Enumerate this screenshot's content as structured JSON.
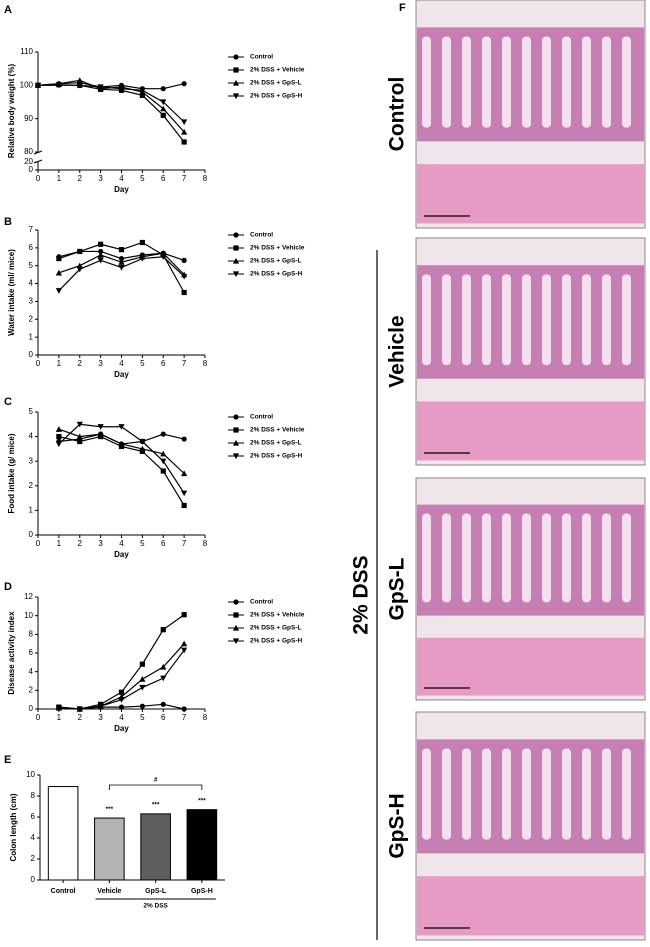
{
  "chart_data": [
    {
      "type": "line",
      "panel": "A",
      "ylabel": "Relative body weight (%)",
      "xlabel": "Day",
      "xlim": [
        0,
        8
      ],
      "xticks": [
        0,
        1,
        2,
        3,
        4,
        5,
        6,
        7,
        8
      ],
      "ylim": [
        80,
        110
      ],
      "yticks": [
        80,
        90,
        100,
        110
      ],
      "lower_ylim": [
        0,
        20
      ],
      "lower_yticks": [
        0,
        20
      ],
      "x": [
        0,
        1,
        2,
        3,
        4,
        5,
        6,
        7
      ],
      "series": [
        {
          "name": "Control",
          "color": "#000000",
          "marker": "circle",
          "values": [
            100,
            100.5,
            100.8,
            99.5,
            100,
            99,
            99,
            100.5
          ]
        },
        {
          "name": "2% DSS + Vehicle",
          "color": "#000000",
          "marker": "square",
          "values": [
            100,
            100.2,
            100,
            98.8,
            98.5,
            97,
            91,
            83
          ]
        },
        {
          "name": "2% DSS + GpS-L",
          "color": "#000000",
          "marker": "triangle",
          "values": [
            100,
            100.5,
            101.5,
            99,
            99.5,
            98,
            93,
            86
          ]
        },
        {
          "name": "2% DSS + GpS-H",
          "color": "#000000",
          "marker": "triangle-down",
          "values": [
            100,
            100,
            100,
            99.5,
            99,
            98.5,
            95,
            89
          ]
        }
      ]
    },
    {
      "type": "line",
      "panel": "B",
      "ylabel": "Water intake (ml/ mice)",
      "xlabel": "Day",
      "xlim": [
        0,
        8
      ],
      "xticks": [
        0,
        1,
        2,
        3,
        4,
        5,
        6,
        7,
        8
      ],
      "ylim": [
        0,
        7
      ],
      "yticks": [
        0,
        1,
        2,
        3,
        4,
        5,
        6,
        7
      ],
      "x": [
        1,
        2,
        3,
        4,
        5,
        6,
        7
      ],
      "series": [
        {
          "name": "Control",
          "color": "#000000",
          "marker": "circle",
          "values": [
            5.5,
            5.8,
            5.8,
            5.4,
            5.6,
            5.7,
            5.3
          ]
        },
        {
          "name": "2% DSS + Vehicle",
          "color": "#000000",
          "marker": "square",
          "values": [
            5.4,
            5.8,
            6.2,
            5.9,
            6.3,
            5.6,
            3.5
          ]
        },
        {
          "name": "2% DSS + GpS-L",
          "color": "#000000",
          "marker": "triangle",
          "values": [
            4.6,
            5.0,
            5.6,
            5.2,
            5.5,
            5.7,
            4.5
          ]
        },
        {
          "name": "2% DSS + GpS-H",
          "color": "#000000",
          "marker": "triangle-down",
          "values": [
            3.6,
            4.8,
            5.3,
            4.9,
            5.4,
            5.5,
            4.4
          ]
        }
      ]
    },
    {
      "type": "line",
      "panel": "C",
      "ylabel": "Food intake (g/ mice)",
      "xlabel": "Day",
      "xlim": [
        0,
        8
      ],
      "xticks": [
        0,
        1,
        2,
        3,
        4,
        5,
        6,
        7,
        8
      ],
      "ylim": [
        0,
        5
      ],
      "yticks": [
        0,
        1,
        2,
        3,
        4,
        5
      ],
      "x": [
        1,
        2,
        3,
        4,
        5,
        6,
        7
      ],
      "series": [
        {
          "name": "Control",
          "color": "#000000",
          "marker": "circle",
          "values": [
            3.8,
            3.9,
            4.1,
            3.7,
            3.8,
            4.1,
            3.9
          ]
        },
        {
          "name": "2% DSS + Vehicle",
          "color": "#000000",
          "marker": "square",
          "values": [
            4.0,
            3.8,
            4.0,
            3.6,
            3.4,
            2.6,
            1.2
          ]
        },
        {
          "name": "2% DSS + GpS-L",
          "color": "#000000",
          "marker": "triangle",
          "values": [
            4.3,
            4.0,
            4.1,
            3.7,
            3.5,
            3.3,
            2.5
          ]
        },
        {
          "name": "2% DSS + GpS-H",
          "color": "#000000",
          "marker": "triangle-down",
          "values": [
            3.7,
            4.5,
            4.4,
            4.4,
            3.8,
            3.0,
            1.7
          ]
        }
      ]
    },
    {
      "type": "line",
      "panel": "D",
      "ylabel": "Disease activity index",
      "xlabel": "Day",
      "xlim": [
        0,
        8
      ],
      "xticks": [
        0,
        1,
        2,
        3,
        4,
        5,
        6,
        7,
        8
      ],
      "ylim": [
        0,
        12
      ],
      "yticks": [
        0,
        2,
        4,
        6,
        8,
        10,
        12
      ],
      "x": [
        1,
        2,
        3,
        4,
        5,
        6,
        7
      ],
      "series": [
        {
          "name": "Control",
          "color": "#000000",
          "marker": "circle",
          "values": [
            0.2,
            0,
            0.2,
            0.2,
            0.3,
            0.5,
            0
          ]
        },
        {
          "name": "2% DSS + Vehicle",
          "color": "#000000",
          "marker": "square",
          "values": [
            0.2,
            0,
            0.5,
            1.8,
            4.8,
            8.5,
            10.1
          ]
        },
        {
          "name": "2% DSS + GpS-L",
          "color": "#000000",
          "marker": "triangle",
          "values": [
            0.1,
            0,
            0.3,
            1.3,
            3.2,
            4.5,
            7
          ]
        },
        {
          "name": "2% DSS + GpS-H",
          "color": "#000000",
          "marker": "triangle-down",
          "values": [
            0.1,
            0,
            0.3,
            1,
            2.3,
            3.3,
            6.3
          ]
        }
      ]
    },
    {
      "type": "bar",
      "panel": "E",
      "ylabel": "Colon length (cm)",
      "group_label": "2% DSS",
      "categories": [
        "Control",
        "Vehicle",
        "GpS-L",
        "GpS-H"
      ],
      "values": [
        8.9,
        5.9,
        6.3,
        6.7
      ],
      "colors": [
        "#ffffff",
        "#b3b3b3",
        "#5e5e5e",
        "#000000"
      ],
      "ylim": [
        0,
        10
      ],
      "yticks": [
        0,
        2,
        4,
        6,
        8,
        10
      ],
      "significance": [
        {
          "category": "Vehicle",
          "text": "***"
        },
        {
          "category": "GpS-L",
          "text": "***"
        },
        {
          "category": "GpS-H",
          "text": "***"
        }
      ],
      "bracket": {
        "from": "Vehicle",
        "to": "GpS-H",
        "text": "#"
      }
    }
  ],
  "histology": {
    "panel": "F",
    "group": "2% DSS",
    "images": [
      "Control",
      "Vehicle",
      "GpS-L",
      "GpS-H"
    ]
  }
}
